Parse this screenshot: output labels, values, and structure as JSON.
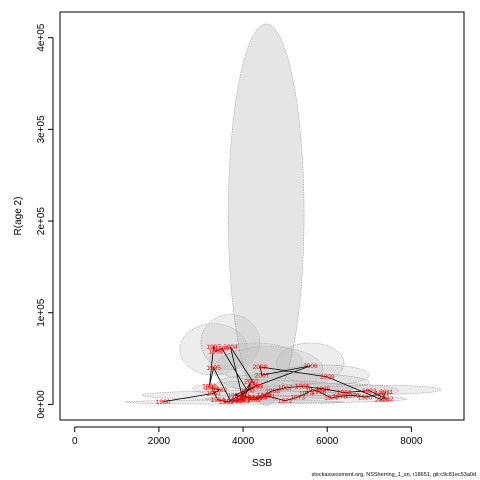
{
  "chart_data": {
    "type": "scatter",
    "xlabel": "SSB",
    "ylabel": "R(age 2)",
    "xlim": [
      -350,
      9250
    ],
    "ylim": [
      -17000,
      428000
    ],
    "x_ticks": [
      0,
      2000,
      4000,
      6000,
      8000
    ],
    "y_ticks": [
      0,
      100000,
      200000,
      300000,
      400000
    ],
    "x_tick_labels": [
      "0",
      "2000",
      "4000",
      "6000",
      "8000"
    ],
    "y_tick_labels": [
      "0e+00",
      "1e+05",
      "2e+05",
      "3e+05",
      "4e+05"
    ],
    "grid": false,
    "point_color": "#ff0000",
    "line_color": "#000000",
    "ellipse_fill": "#bebebe",
    "big_ellipse": {
      "cx": 4550,
      "cy": 207000,
      "rx": 900,
      "ry": 208000
    },
    "ellipses": [
      {
        "cx": 3300,
        "cy": 60000,
        "rx": 800,
        "ry": 28000
      },
      {
        "cx": 3700,
        "cy": 68000,
        "rx": 700,
        "ry": 30000
      },
      {
        "cx": 4300,
        "cy": 47000,
        "rx": 1100,
        "ry": 20000
      },
      {
        "cx": 4600,
        "cy": 38000,
        "rx": 1300,
        "ry": 25000
      },
      {
        "cx": 5600,
        "cy": 45000,
        "rx": 800,
        "ry": 22000
      },
      {
        "cx": 5900,
        "cy": 32000,
        "rx": 1100,
        "ry": 11000
      },
      {
        "cx": 5200,
        "cy": 24000,
        "rx": 1800,
        "ry": 10000
      },
      {
        "cx": 4700,
        "cy": 17000,
        "rx": 1900,
        "ry": 9000
      },
      {
        "cx": 6000,
        "cy": 15000,
        "rx": 1700,
        "ry": 8000
      },
      {
        "cx": 7200,
        "cy": 16000,
        "rx": 1500,
        "ry": 5000
      },
      {
        "cx": 4200,
        "cy": 10000,
        "rx": 2600,
        "ry": 5000
      },
      {
        "cx": 5500,
        "cy": 6000,
        "rx": 2400,
        "ry": 4000
      },
      {
        "cx": 3800,
        "cy": 2500,
        "rx": 2600,
        "ry": 2200
      }
    ],
    "points": [
      {
        "label": "1960",
        "x": 2100,
        "y": 3000
      },
      {
        "label": "1961",
        "x": 3300,
        "y": 12000
      },
      {
        "label": "1962",
        "x": 3450,
        "y": 16000
      },
      {
        "label": "1963",
        "x": 3250,
        "y": 18000
      },
      {
        "label": "1964",
        "x": 3400,
        "y": 5000
      },
      {
        "label": "1965",
        "x": 3600,
        "y": 3000
      },
      {
        "label": "1966",
        "x": 3800,
        "y": 4000
      },
      {
        "label": "1967",
        "x": 4000,
        "y": 6000
      },
      {
        "label": "1968",
        "x": 4100,
        "y": 8000
      },
      {
        "label": "1969",
        "x": 4250,
        "y": 5000
      },
      {
        "label": "1970",
        "x": 4400,
        "y": 7000
      },
      {
        "label": "1971",
        "x": 4600,
        "y": 9000
      },
      {
        "label": "1972",
        "x": 5000,
        "y": 4000
      },
      {
        "label": "1973",
        "x": 5300,
        "y": 8000
      },
      {
        "label": "1974",
        "x": 5500,
        "y": 12000
      },
      {
        "label": "1975",
        "x": 5650,
        "y": 16000
      },
      {
        "label": "1976",
        "x": 5800,
        "y": 14000
      },
      {
        "label": "1977",
        "x": 6100,
        "y": 7000
      },
      {
        "label": "1978",
        "x": 6300,
        "y": 9000
      },
      {
        "label": "1979",
        "x": 6600,
        "y": 10000
      },
      {
        "label": "1980",
        "x": 6900,
        "y": 8000
      },
      {
        "label": "1981",
        "x": 7300,
        "y": 12000
      },
      {
        "label": "1982",
        "x": 7400,
        "y": 6000
      },
      {
        "label": "1983",
        "x": 7000,
        "y": 15000
      },
      {
        "label": "1984",
        "x": 6400,
        "y": 13000
      },
      {
        "label": "1985",
        "x": 5900,
        "y": 17000
      },
      {
        "label": "1986",
        "x": 5400,
        "y": 20000
      },
      {
        "label": "1987",
        "x": 5000,
        "y": 18000
      },
      {
        "label": "1988",
        "x": 4700,
        "y": 15000
      },
      {
        "label": "1989",
        "x": 4500,
        "y": 10000
      },
      {
        "label": "1990",
        "x": 4300,
        "y": 7000
      },
      {
        "label": "1991",
        "x": 4000,
        "y": 9000
      },
      {
        "label": "1992",
        "x": 3800,
        "y": 10000
      },
      {
        "label": "1993",
        "x": 4300,
        "y": 20000
      },
      {
        "label": "1994",
        "x": 3700,
        "y": 4000
      },
      {
        "label": "1995",
        "x": 3300,
        "y": 40000
      },
      {
        "label": "1996",
        "x": 3200,
        "y": 20000
      },
      {
        "label": "1997",
        "x": 3300,
        "y": 63000
      },
      {
        "label": "1998",
        "x": 3350,
        "y": 58000
      },
      {
        "label": "1999",
        "x": 3500,
        "y": 61000
      },
      {
        "label": "2000",
        "x": 4100,
        "y": 15000
      },
      {
        "label": "2001",
        "x": 3900,
        "y": 5000
      },
      {
        "label": "2002",
        "x": 4200,
        "y": 25000
      },
      {
        "label": "2003",
        "x": 4000,
        "y": 4000
      },
      {
        "label": "2004",
        "x": 3700,
        "y": 63000
      },
      {
        "label": "2005",
        "x": 4300,
        "y": 20000
      },
      {
        "label": "2006",
        "x": 5600,
        "y": 42000
      },
      {
        "label": "2007",
        "x": 4450,
        "y": 32000
      },
      {
        "label": "2008",
        "x": 4400,
        "y": 41000
      },
      {
        "label": "2009",
        "x": 6000,
        "y": 30000
      },
      {
        "label": "2010",
        "x": 7300,
        "y": 5000
      },
      {
        "label": "2011",
        "x": 7400,
        "y": 14000
      }
    ]
  },
  "footer": "stockassessment.org, NSSherring_1_sn, r18651, git:c9c81ec53a0d"
}
